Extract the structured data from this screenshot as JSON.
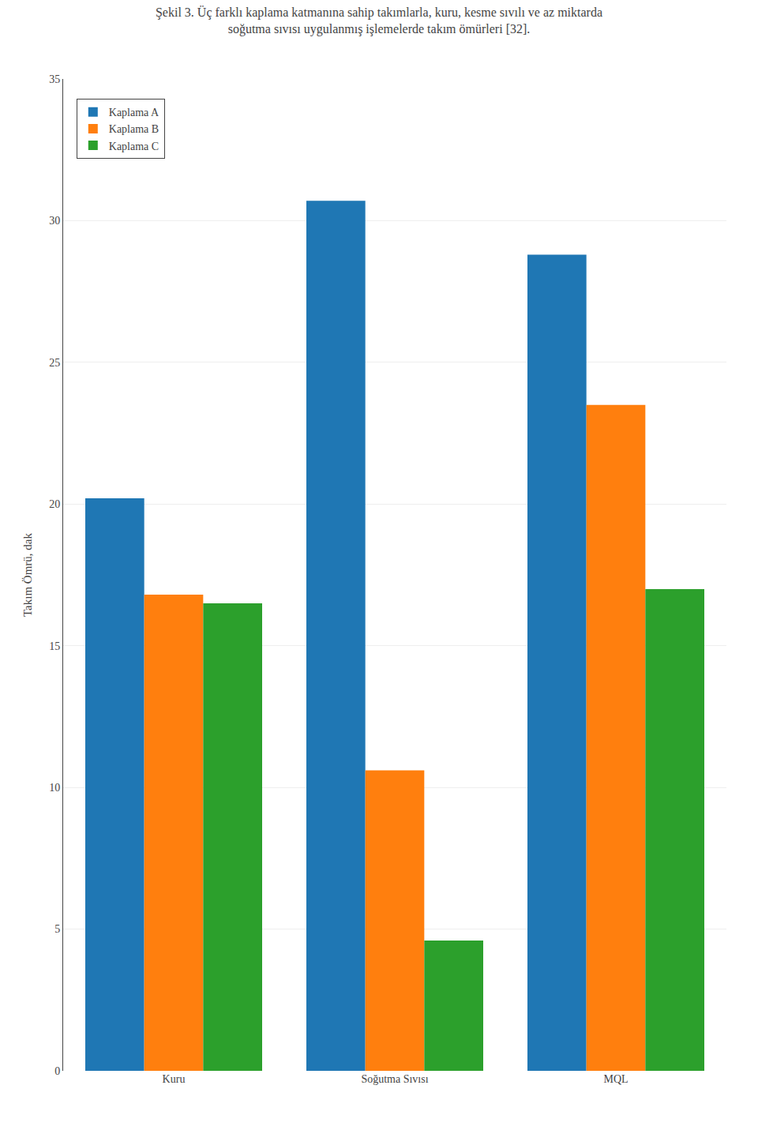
{
  "chart_data": {
    "type": "bar",
    "title": [
      "Şekil 3. Üç farklı kaplama katmanına sahip takımlarla, kuru, kesme sıvılı ve az miktarda",
      "soğutma sıvısı uygulanmış işlemelerde takım ömürleri [32]."
    ],
    "categories": [
      "Kuru",
      "Soğutma Sıvısı",
      "MQL"
    ],
    "series": [
      {
        "name": "Kaplama A",
        "values": [
          20.2,
          30.7,
          28.8
        ]
      },
      {
        "name": "Kaplama B",
        "values": [
          16.8,
          10.6,
          23.5
        ]
      },
      {
        "name": "Kaplama C",
        "values": [
          16.5,
          4.6,
          17.0
        ]
      }
    ],
    "y_label": "Takım Ömrü, dak",
    "ylim": [
      0,
      35
    ],
    "yticks": [
      0,
      5,
      10,
      15,
      20,
      25,
      30,
      35
    ],
    "grid": true,
    "legend": "upper left"
  }
}
